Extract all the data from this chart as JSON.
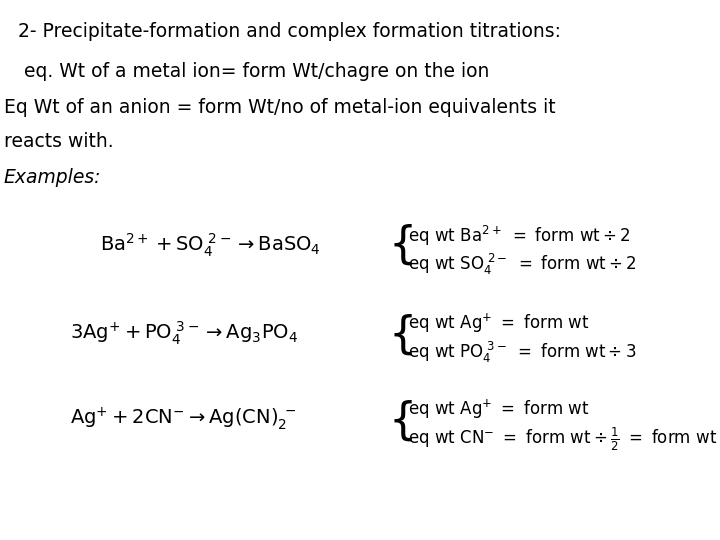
{
  "bg_color": "#ffffff",
  "text_color": "#000000",
  "fontsize_main": 13.5,
  "line1": "2- Precipitate-formation and complex formation titrations:",
  "line2": " eq. Wt of a metal ion= form Wt/chagre on the ion",
  "line3a": "Eq Wt of an anion = form Wt/no of metal-ion equivalents it",
  "line3b": "reacts with.",
  "examples": "Examples:"
}
